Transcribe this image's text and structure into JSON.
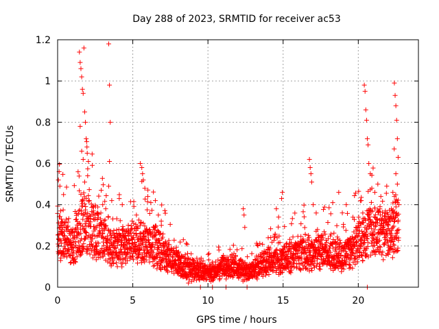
{
  "chart_data": {
    "type": "scatter",
    "title": "Day 288 of 2023, SRMTID for receiver ac53",
    "xlabel": "GPS time / hours",
    "ylabel": "SRMTID / TECUs",
    "xlim": [
      0,
      24
    ],
    "ylim": [
      0,
      1.2
    ],
    "xticks": [
      0,
      5,
      10,
      15,
      20
    ],
    "xtick_labels": [
      "0",
      "5",
      "10",
      "15",
      "20"
    ],
    "yticks": [
      0,
      0.2,
      0.4,
      0.6,
      0.8,
      1.0,
      1.2
    ],
    "ytick_labels": [
      "0",
      "0.2",
      "0.4",
      "0.6",
      "0.8",
      "1",
      "1.2"
    ],
    "grid": true,
    "marker": "+",
    "color": "#ff0000",
    "profile": [
      [
        0.0,
        0.26
      ],
      [
        0.5,
        0.23
      ],
      [
        1.0,
        0.22
      ],
      [
        1.5,
        0.28
      ],
      [
        2.0,
        0.3
      ],
      [
        2.5,
        0.27
      ],
      [
        3.0,
        0.24
      ],
      [
        3.5,
        0.2
      ],
      [
        4.0,
        0.19
      ],
      [
        4.5,
        0.19
      ],
      [
        5.0,
        0.21
      ],
      [
        5.5,
        0.22
      ],
      [
        6.0,
        0.21
      ],
      [
        6.5,
        0.2
      ],
      [
        7.0,
        0.17
      ],
      [
        7.5,
        0.14
      ],
      [
        8.0,
        0.12
      ],
      [
        8.5,
        0.1
      ],
      [
        9.0,
        0.08
      ],
      [
        9.5,
        0.07
      ],
      [
        10.0,
        0.07
      ],
      [
        10.5,
        0.08
      ],
      [
        11.0,
        0.09
      ],
      [
        11.5,
        0.1
      ],
      [
        12.0,
        0.09
      ],
      [
        12.5,
        0.07
      ],
      [
        13.0,
        0.08
      ],
      [
        13.5,
        0.11
      ],
      [
        14.0,
        0.12
      ],
      [
        14.5,
        0.12
      ],
      [
        15.0,
        0.13
      ],
      [
        15.5,
        0.15
      ],
      [
        16.0,
        0.16
      ],
      [
        16.5,
        0.17
      ],
      [
        17.0,
        0.17
      ],
      [
        17.5,
        0.18
      ],
      [
        18.0,
        0.17
      ],
      [
        18.5,
        0.16
      ],
      [
        19.0,
        0.15
      ],
      [
        19.5,
        0.17
      ],
      [
        20.0,
        0.22
      ],
      [
        20.5,
        0.26
      ],
      [
        21.0,
        0.28
      ],
      [
        21.5,
        0.28
      ],
      [
        22.0,
        0.24
      ],
      [
        22.5,
        0.3
      ],
      [
        22.7,
        0.3
      ]
    ],
    "series": [
      {
        "name": "SRMTID",
        "points": [
          [
            0.05,
            0.52
          ],
          [
            0.1,
            0.56
          ],
          [
            0.15,
            0.49
          ],
          [
            0.2,
            0.37
          ],
          [
            0.25,
            0.33
          ],
          [
            0.3,
            0.28
          ],
          [
            1.45,
            1.14
          ],
          [
            1.5,
            1.09
          ],
          [
            1.55,
            1.06
          ],
          [
            1.6,
            1.02
          ],
          [
            1.65,
            0.96
          ],
          [
            1.7,
            0.94
          ],
          [
            1.75,
            1.16
          ],
          [
            1.8,
            0.85
          ],
          [
            1.85,
            0.8
          ],
          [
            1.9,
            0.72
          ],
          [
            1.95,
            0.68
          ],
          [
            2.0,
            0.54
          ],
          [
            1.5,
            0.78
          ],
          [
            1.6,
            0.66
          ],
          [
            1.7,
            0.62
          ],
          [
            1.8,
            0.51
          ],
          [
            1.55,
            0.45
          ],
          [
            1.9,
            0.43
          ],
          [
            3.4,
            1.18
          ],
          [
            3.45,
            0.98
          ],
          [
            3.5,
            0.8
          ],
          [
            3.45,
            0.61
          ],
          [
            3.4,
            0.49
          ],
          [
            3.6,
            0.42
          ],
          [
            2.9,
            0.47
          ],
          [
            3.0,
            0.4
          ],
          [
            3.2,
            0.38
          ],
          [
            4.1,
            0.43
          ],
          [
            4.3,
            0.4
          ],
          [
            5.5,
            0.6
          ],
          [
            5.6,
            0.58
          ],
          [
            5.65,
            0.55
          ],
          [
            5.7,
            0.52
          ],
          [
            5.8,
            0.48
          ],
          [
            6.0,
            0.44
          ],
          [
            6.2,
            0.41
          ],
          [
            6.5,
            0.42
          ],
          [
            6.7,
            0.35
          ],
          [
            6.9,
            0.3
          ],
          [
            12.35,
            0.38
          ],
          [
            12.4,
            0.35
          ],
          [
            12.45,
            0.29
          ],
          [
            14.55,
            0.38
          ],
          [
            14.7,
            0.34
          ],
          [
            14.9,
            0.43
          ],
          [
            14.95,
            0.46
          ],
          [
            16.75,
            0.62
          ],
          [
            16.8,
            0.58
          ],
          [
            16.85,
            0.55
          ],
          [
            16.9,
            0.51
          ],
          [
            17.0,
            0.4
          ],
          [
            17.2,
            0.36
          ],
          [
            18.3,
            0.41
          ],
          [
            18.7,
            0.46
          ],
          [
            19.2,
            0.4
          ],
          [
            20.4,
            0.98
          ],
          [
            20.45,
            0.95
          ],
          [
            20.5,
            0.86
          ],
          [
            20.55,
            0.81
          ],
          [
            20.6,
            0.72
          ],
          [
            20.65,
            0.69
          ],
          [
            20.7,
            0.6
          ],
          [
            20.8,
            0.55
          ],
          [
            20.9,
            0.48
          ],
          [
            21.1,
            0.46
          ],
          [
            21.3,
            0.5
          ],
          [
            21.5,
            0.44
          ],
          [
            20.2,
            0.42
          ],
          [
            20.3,
            0.36
          ],
          [
            22.4,
            0.99
          ],
          [
            22.45,
            0.93
          ],
          [
            22.5,
            0.88
          ],
          [
            22.55,
            0.81
          ],
          [
            22.6,
            0.72
          ],
          [
            22.65,
            0.63
          ],
          [
            22.5,
            0.55
          ],
          [
            22.6,
            0.5
          ],
          [
            22.4,
            0.44
          ],
          [
            22.7,
            0.4
          ],
          [
            22.3,
            0.46
          ],
          [
            22.2,
            0.38
          ],
          [
            21.8,
            0.37
          ],
          [
            21.9,
            0.33
          ],
          [
            22.0,
            0.3
          ],
          [
            9.5,
            0.0
          ],
          [
            10.3,
            0.0
          ],
          [
            11.2,
            0.0
          ],
          [
            12.6,
            0.0
          ],
          [
            20.6,
            0.0
          ],
          [
            8.7,
            0.02
          ]
        ]
      }
    ]
  }
}
